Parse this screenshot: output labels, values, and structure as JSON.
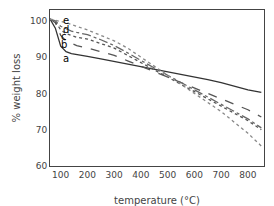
{
  "chart_data": {
    "type": "line",
    "title": "",
    "xlabel": "temperature (°C)",
    "ylabel": "% weight loss",
    "x": [
      60,
      80,
      100,
      120,
      140,
      160,
      200,
      250,
      300,
      350,
      400,
      450,
      500,
      550,
      600,
      650,
      700,
      750,
      800,
      850
    ],
    "series": [
      {
        "color": "#333333",
        "line_style": "solid",
        "values": [
          100.5,
          98.0,
          93.0,
          91.5,
          91.0,
          90.8,
          90.2,
          89.5,
          88.8,
          88.2,
          87.5,
          86.8,
          86.0,
          85.2,
          84.5,
          83.8,
          83.0,
          82.0,
          81.0,
          80.3
        ]
      },
      {
        "color": "#555555",
        "line_style": "dashed",
        "values": [
          100.5,
          99.5,
          96.0,
          94.5,
          93.8,
          93.2,
          92.5,
          91.5,
          90.5,
          89.0,
          87.5,
          86.0,
          84.5,
          83.0,
          81.5,
          80.0,
          78.5,
          77.0,
          75.5,
          73.5
        ]
      },
      {
        "color": "#555555",
        "line_style": "dotted",
        "values": [
          100.5,
          99.8,
          97.5,
          96.5,
          96.0,
          95.5,
          95.0,
          93.8,
          92.5,
          90.5,
          88.5,
          86.5,
          84.5,
          82.5,
          80.5,
          78.5,
          76.5,
          74.5,
          72.5,
          70.0
        ]
      },
      {
        "color": "#666666",
        "line_style": "dashdot",
        "values": [
          100.5,
          100.0,
          98.5,
          97.8,
          97.2,
          96.8,
          96.2,
          94.8,
          93.2,
          91.2,
          89.0,
          87.0,
          85.0,
          83.0,
          81.0,
          79.0,
          77.0,
          75.0,
          73.0,
          70.5
        ]
      },
      {
        "color": "#888888",
        "line_style": "dotted",
        "values": [
          100.5,
          100.2,
          100.0,
          99.5,
          99.0,
          98.5,
          97.5,
          96.0,
          94.5,
          92.5,
          90.0,
          87.5,
          85.0,
          82.5,
          80.0,
          77.5,
          75.0,
          72.0,
          69.0,
          65.5
        ]
      }
    ],
    "annotations": [
      {
        "text": "a",
        "x": 118,
        "y": 89.5
      },
      {
        "text": "b",
        "x": 112,
        "y": 93.5
      },
      {
        "text": "c",
        "x": 112,
        "y": 95.8
      },
      {
        "text": "d",
        "x": 118,
        "y": 97.5
      },
      {
        "text": "e",
        "x": 118,
        "y": 100.2
      }
    ],
    "xlim": [
      60,
      860
    ],
    "ylim": [
      60,
      103
    ],
    "xticks": [
      100,
      200,
      300,
      400,
      500,
      600,
      700,
      800
    ],
    "yticks": [
      60,
      70,
      80,
      90,
      100
    ],
    "grid": false
  }
}
